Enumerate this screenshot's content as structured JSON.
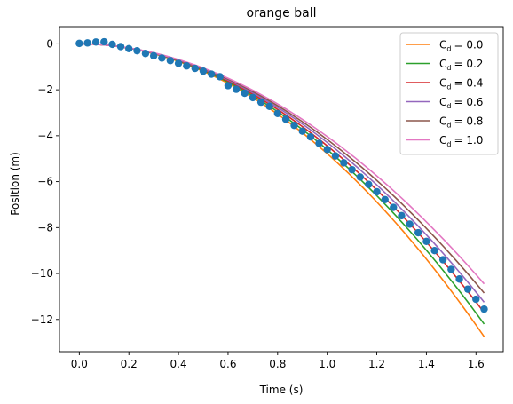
{
  "chart_data": {
    "type": "line",
    "title": "orange ball",
    "xlabel": "Time (s)",
    "ylabel": "Position (m)",
    "xlim": [
      -0.08,
      1.71
    ],
    "ylim": [
      -13.4,
      0.75
    ],
    "xticks": [
      0.0,
      0.2,
      0.4,
      0.6,
      0.8,
      1.0,
      1.2,
      1.4,
      1.6
    ],
    "xtick_labels": [
      "0.0",
      "0.2",
      "0.4",
      "0.6",
      "0.8",
      "1.0",
      "1.2",
      "1.4",
      "1.6"
    ],
    "yticks": [
      0,
      -2,
      -4,
      -6,
      -8,
      -10,
      -12
    ],
    "ytick_labels": [
      "0",
      "−2",
      "−4",
      "−6",
      "−8",
      "−10",
      "−12"
    ],
    "grid": false,
    "legend_position": "top-right",
    "scatter": {
      "color": "#1f77b4",
      "x": [
        0.0,
        0.033,
        0.067,
        0.1,
        0.133,
        0.167,
        0.2,
        0.233,
        0.267,
        0.3,
        0.333,
        0.367,
        0.4,
        0.433,
        0.467,
        0.5,
        0.533,
        0.567,
        0.6,
        0.633,
        0.667,
        0.7,
        0.733,
        0.767,
        0.8,
        0.833,
        0.867,
        0.9,
        0.933,
        0.967,
        1.0,
        1.033,
        1.067,
        1.1,
        1.133,
        1.167,
        1.2,
        1.233,
        1.267,
        1.3,
        1.333,
        1.367,
        1.4,
        1.433,
        1.467,
        1.5,
        1.533,
        1.567,
        1.6,
        1.633
      ],
      "y": [
        0.02,
        0.04,
        0.08,
        0.09,
        -0.02,
        -0.12,
        -0.21,
        -0.3,
        -0.42,
        -0.52,
        -0.62,
        -0.73,
        -0.85,
        -0.96,
        -1.07,
        -1.19,
        -1.32,
        -1.43,
        -1.82,
        -1.98,
        -2.15,
        -2.34,
        -2.54,
        -2.72,
        -3.03,
        -3.28,
        -3.55,
        -3.8,
        -4.05,
        -4.33,
        -4.6,
        -4.88,
        -5.18,
        -5.48,
        -5.8,
        -6.12,
        -6.44,
        -6.78,
        -7.12,
        -7.48,
        -7.85,
        -8.22,
        -8.6,
        -9.0,
        -9.4,
        -9.82,
        -10.24,
        -10.68,
        -11.12,
        -11.55
      ]
    },
    "series": [
      {
        "name_label": "C",
        "name_sub": "d",
        "name_value": "= 0.0",
        "cd": 0.0,
        "color": "#ff7f0e"
      },
      {
        "name_label": "C",
        "name_sub": "d",
        "name_value": "= 0.2",
        "cd": 0.2,
        "color": "#2ca02c"
      },
      {
        "name_label": "C",
        "name_sub": "d",
        "name_value": "= 0.4",
        "cd": 0.4,
        "color": "#d62728"
      },
      {
        "name_label": "C",
        "name_sub": "d",
        "name_value": "= 0.6",
        "cd": 0.6,
        "color": "#9467bd"
      },
      {
        "name_label": "C",
        "name_sub": "d",
        "name_value": "= 0.8",
        "cd": 0.8,
        "color": "#8c564b"
      },
      {
        "name_label": "C",
        "name_sub": "d",
        "name_value": "= 1.0",
        "cd": 1.0,
        "color": "#e377c2"
      }
    ],
    "series_x_range": [
      0.0,
      1.633
    ],
    "series_endpoints_y": [
      -12.75,
      -12.2,
      -11.7,
      -11.25,
      -10.85,
      -10.45
    ]
  }
}
